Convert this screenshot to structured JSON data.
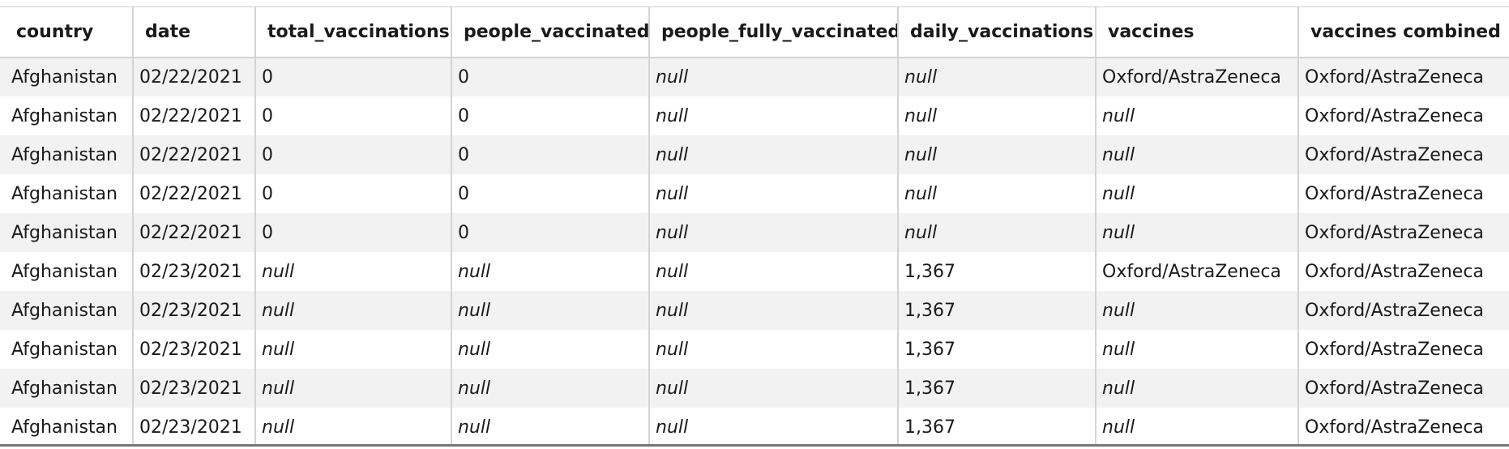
{
  "table": {
    "columns": [
      "country",
      "date",
      "total_vaccinations",
      "people_vaccinated",
      "people_fully_vaccinated",
      "daily_vaccinations",
      "vaccines",
      "vaccines combined"
    ],
    "rows": [
      [
        "Afghanistan",
        "02/22/2021",
        "0",
        "0",
        "null",
        "null",
        "Oxford/AstraZeneca",
        "Oxford/AstraZeneca"
      ],
      [
        "Afghanistan",
        "02/22/2021",
        "0",
        "0",
        "null",
        "null",
        "null",
        "Oxford/AstraZeneca"
      ],
      [
        "Afghanistan",
        "02/22/2021",
        "0",
        "0",
        "null",
        "null",
        "null",
        "Oxford/AstraZeneca"
      ],
      [
        "Afghanistan",
        "02/22/2021",
        "0",
        "0",
        "null",
        "null",
        "null",
        "Oxford/AstraZeneca"
      ],
      [
        "Afghanistan",
        "02/22/2021",
        "0",
        "0",
        "null",
        "null",
        "null",
        "Oxford/AstraZeneca"
      ],
      [
        "Afghanistan",
        "02/23/2021",
        "null",
        "null",
        "null",
        "1,367",
        "Oxford/AstraZeneca",
        "Oxford/AstraZeneca"
      ],
      [
        "Afghanistan",
        "02/23/2021",
        "null",
        "null",
        "null",
        "1,367",
        "null",
        "Oxford/AstraZeneca"
      ],
      [
        "Afghanistan",
        "02/23/2021",
        "null",
        "null",
        "null",
        "1,367",
        "null",
        "Oxford/AstraZeneca"
      ],
      [
        "Afghanistan",
        "02/23/2021",
        "null",
        "null",
        "null",
        "1,367",
        "null",
        "Oxford/AstraZeneca"
      ],
      [
        "Afghanistan",
        "02/23/2021",
        "null",
        "null",
        "null",
        "1,367",
        "null",
        "Oxford/AstraZeneca"
      ]
    ]
  }
}
